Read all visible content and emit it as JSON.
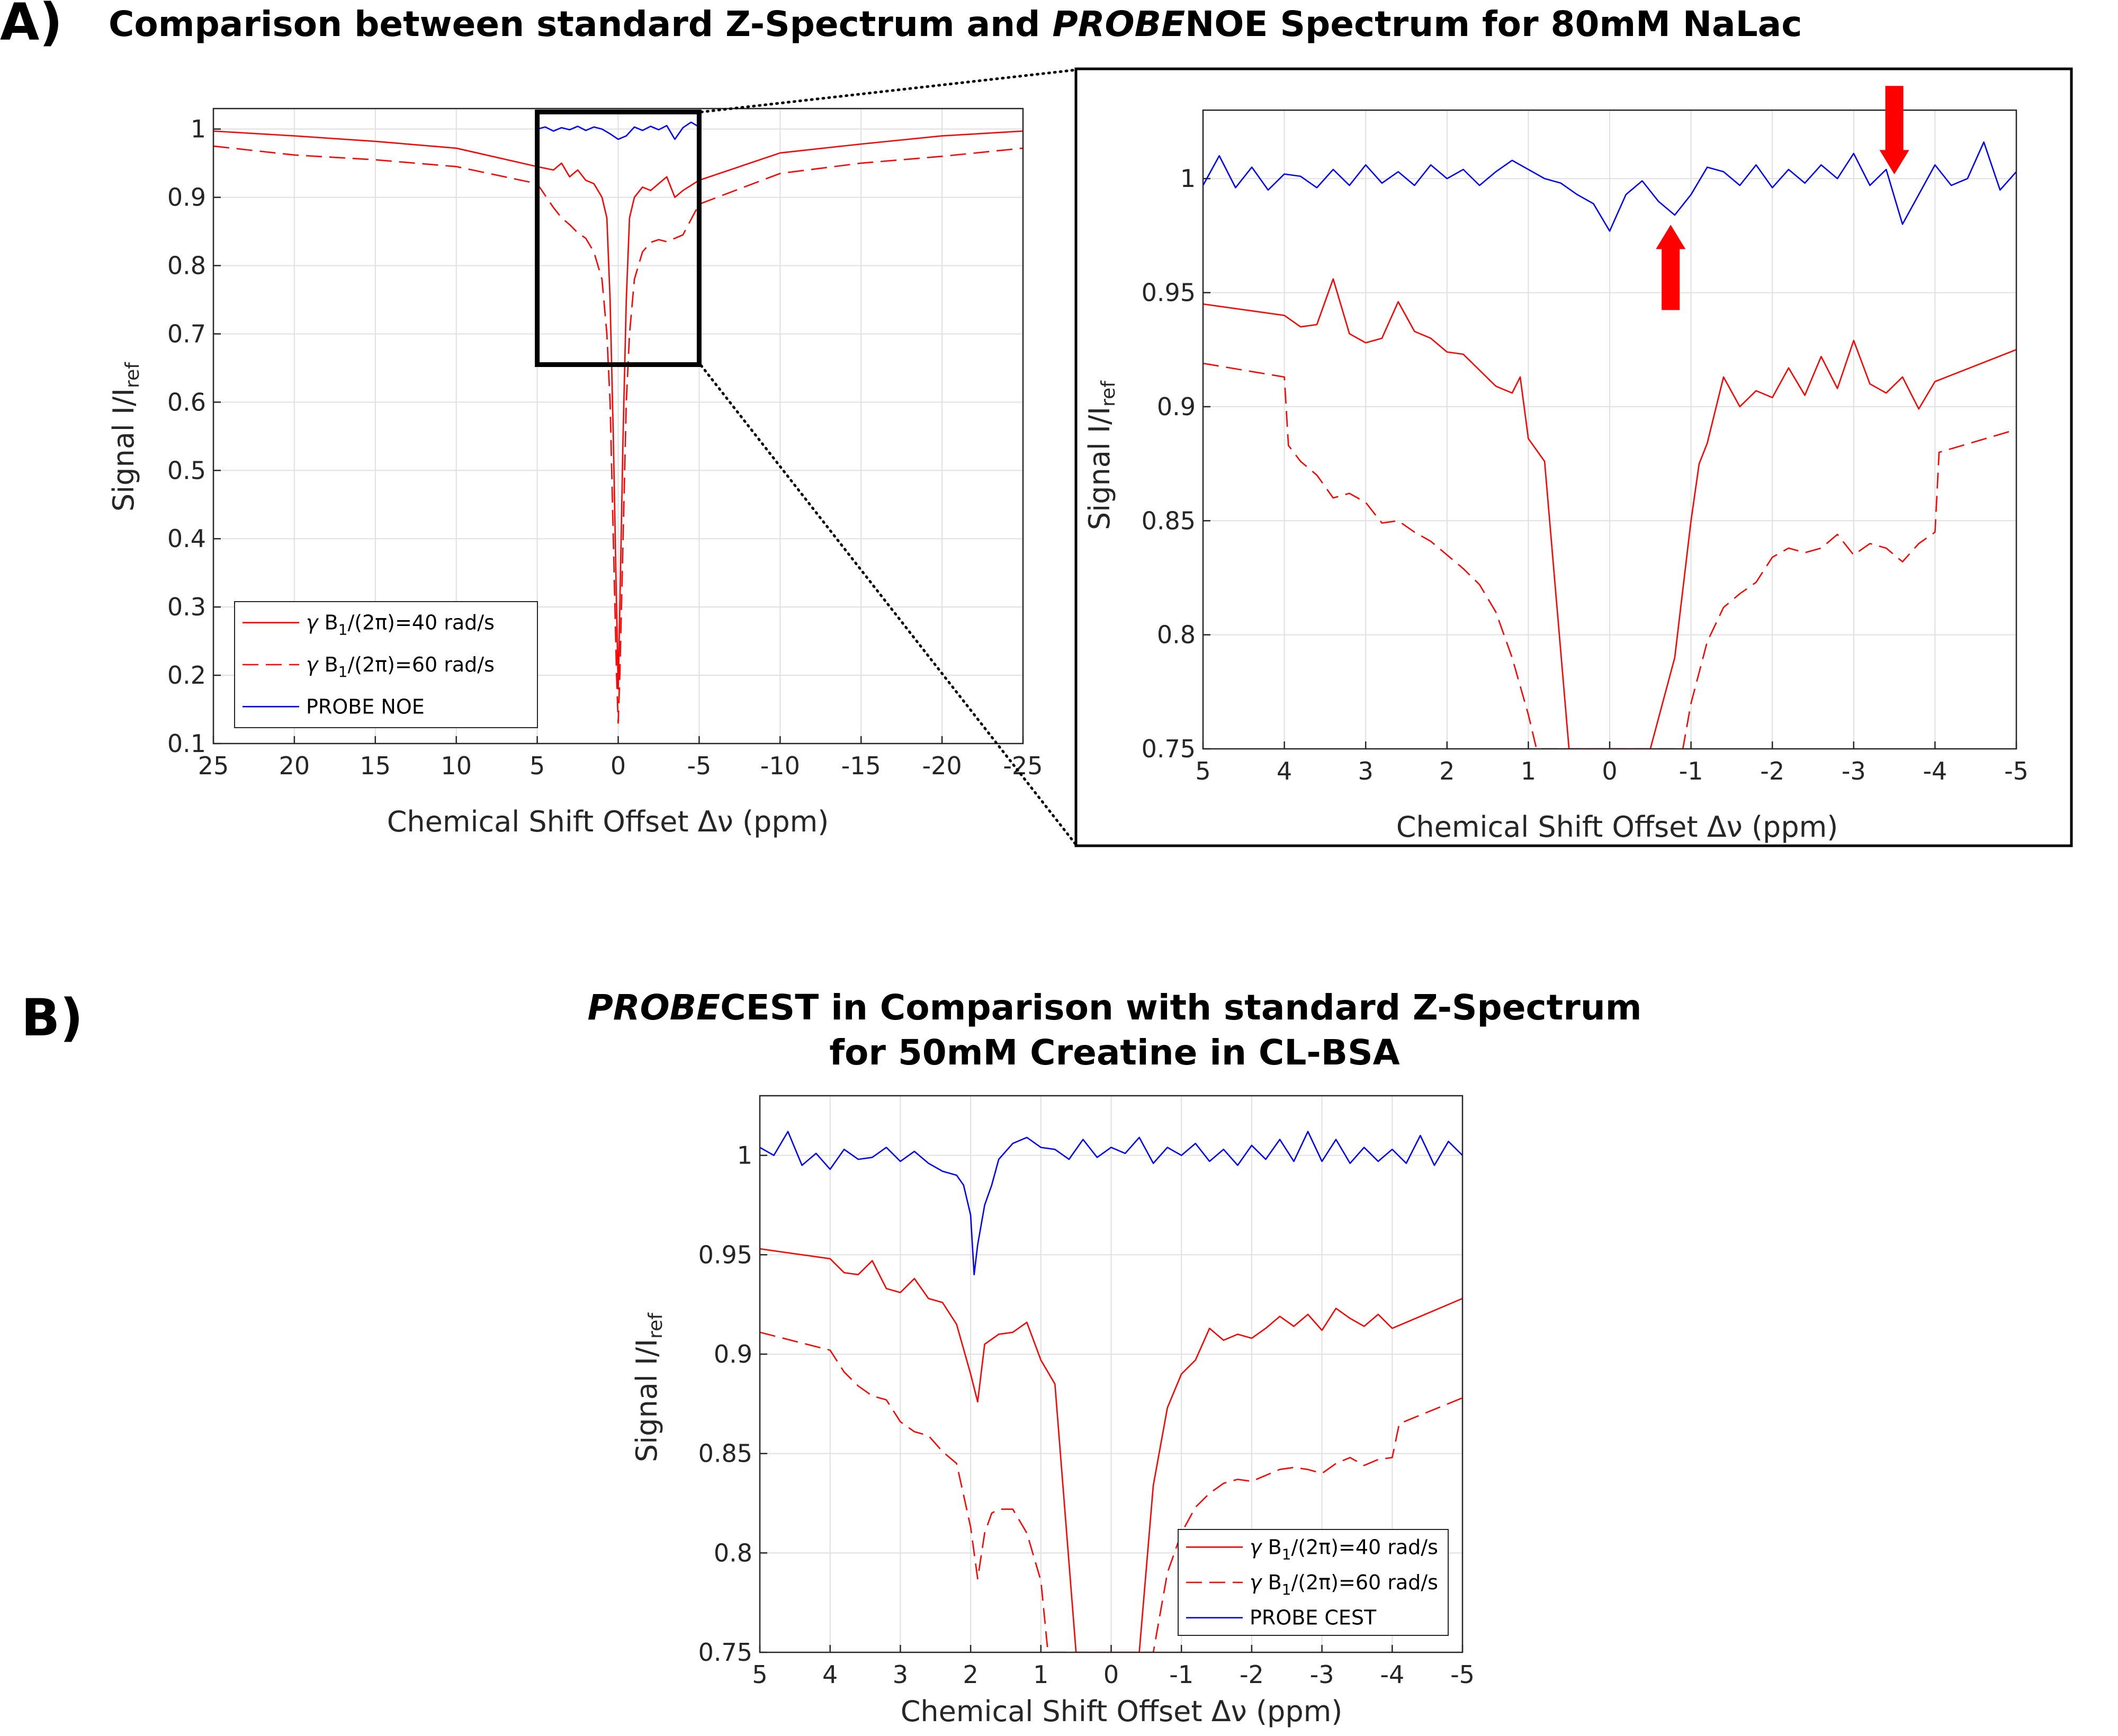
{
  "panel_a": {
    "label": "A)",
    "title_italic": "PROBE",
    "title_pre": "Comparison between standard Z-Spectrum and ",
    "title_post": "NOE Spectrum for 80mM NaLac",
    "ylabel_main": "Signal I/I",
    "ylabel_sub": "ref",
    "xlabel": "Chemical Shift Offset Δν (ppm)"
  },
  "panel_b": {
    "label": "B)",
    "title_line1_italic": "PROBE",
    "title_line1_post": "CEST in Comparison with standard Z-Spectrum",
    "title_line2": "for 50mM Creatine in CL-BSA",
    "ylabel_main": "Signal I/I",
    "ylabel_sub": "ref",
    "xlabel": "Chemical Shift Offset Δν (ppm)"
  },
  "colors": {
    "red": "#ff0000",
    "blue": "#0000ff",
    "arrow": "#ff0000"
  },
  "chart_data": [
    {
      "id": "a_main",
      "type": "line",
      "xlim": [
        25,
        -25
      ],
      "ylim": [
        0.1,
        1.03
      ],
      "xticks": [
        25,
        20,
        15,
        10,
        5,
        0,
        -5,
        -10,
        -15,
        -20,
        -25
      ],
      "yticks": [
        0.1,
        0.2,
        0.3,
        0.4,
        0.5,
        0.6,
        0.7,
        0.8,
        0.9,
        1
      ],
      "grid": true,
      "legend_position": "bottom-left",
      "zoom_box": {
        "x": [
          5,
          -5
        ],
        "y": [
          0.655,
          1.025
        ]
      },
      "series": [
        {
          "name": "γ B1/(2π)=40 rad/s",
          "style": "solid",
          "color": "#ff0000",
          "x": [
            25,
            20,
            15,
            10,
            5,
            4,
            3.5,
            3,
            2.5,
            2,
            1.5,
            1,
            0.7,
            0.5,
            0.3,
            0.1,
            0,
            -0.1,
            -0.3,
            -0.5,
            -0.7,
            -1,
            -1.5,
            -2,
            -2.5,
            -3,
            -3.5,
            -4,
            -5,
            -10,
            -15,
            -20,
            -25
          ],
          "y": [
            0.997,
            0.99,
            0.982,
            0.972,
            0.945,
            0.94,
            0.95,
            0.93,
            0.94,
            0.925,
            0.92,
            0.9,
            0.87,
            0.75,
            0.55,
            0.3,
            0.18,
            0.3,
            0.55,
            0.75,
            0.87,
            0.9,
            0.915,
            0.91,
            0.92,
            0.93,
            0.9,
            0.91,
            0.925,
            0.965,
            0.978,
            0.99,
            0.997
          ]
        },
        {
          "name": "γ B1/(2π)=60 rad/s",
          "style": "dashed",
          "color": "#ff0000",
          "x": [
            25,
            20,
            15,
            10,
            5,
            4,
            3.5,
            3,
            2.5,
            2,
            1.5,
            1,
            0.7,
            0.5,
            0.3,
            0.1,
            0,
            -0.1,
            -0.3,
            -0.5,
            -0.7,
            -1,
            -1.5,
            -2,
            -2.5,
            -3,
            -3.5,
            -4,
            -5,
            -10,
            -15,
            -20,
            -25
          ],
          "y": [
            0.975,
            0.962,
            0.955,
            0.945,
            0.92,
            0.885,
            0.87,
            0.86,
            0.848,
            0.84,
            0.82,
            0.78,
            0.7,
            0.6,
            0.4,
            0.2,
            0.13,
            0.2,
            0.4,
            0.6,
            0.7,
            0.78,
            0.82,
            0.834,
            0.838,
            0.835,
            0.84,
            0.845,
            0.89,
            0.935,
            0.95,
            0.96,
            0.972
          ]
        },
        {
          "name": "PROBE NOE",
          "style": "solid",
          "color": "#0000ff",
          "x": [
            5,
            4.5,
            4,
            3.5,
            3,
            2.5,
            2,
            1.5,
            1,
            0.5,
            0,
            -0.5,
            -1,
            -1.5,
            -2,
            -2.5,
            -3,
            -3.5,
            -4,
            -4.5,
            -5
          ],
          "y": [
            1.0,
            1.003,
            0.997,
            1.002,
            0.999,
            1.004,
            0.998,
            1.003,
            1.0,
            0.993,
            0.985,
            0.99,
            1.003,
            0.998,
            1.004,
            0.999,
            1.005,
            0.985,
            1.002,
            1.01,
            1.003
          ]
        }
      ]
    },
    {
      "id": "a_zoom",
      "type": "line",
      "xlim": [
        5,
        -5
      ],
      "ylim": [
        0.75,
        1.03
      ],
      "xticks": [
        5,
        4,
        3,
        2,
        1,
        0,
        -1,
        -2,
        -3,
        -4,
        -5
      ],
      "yticks": [
        0.75,
        0.8,
        0.85,
        0.9,
        0.95,
        1
      ],
      "grid": true,
      "annotations": [
        {
          "type": "arrow",
          "direction": "up",
          "x": -0.75,
          "y": 0.983
        },
        {
          "type": "arrow",
          "direction": "down",
          "x": -3.5,
          "y": 1.0
        }
      ],
      "series": [
        {
          "name": "γ B1/(2π)=40 rad/s",
          "style": "solid",
          "color": "#ff0000",
          "x": [
            5,
            4,
            3.8,
            3.6,
            3.4,
            3.2,
            3.0,
            2.8,
            2.6,
            2.4,
            2.2,
            2.0,
            1.8,
            1.6,
            1.4,
            1.2,
            1.1,
            1.0,
            0.8,
            0.5,
            -0.5,
            -0.8,
            -1.0,
            -1.1,
            -1.2,
            -1.4,
            -1.6,
            -1.8,
            -2.0,
            -2.2,
            -2.4,
            -2.6,
            -2.8,
            -3.0,
            -3.2,
            -3.4,
            -3.6,
            -3.8,
            -4.0,
            -5.0
          ],
          "y": [
            0.945,
            0.94,
            0.935,
            0.936,
            0.956,
            0.932,
            0.928,
            0.93,
            0.946,
            0.933,
            0.93,
            0.924,
            0.923,
            0.916,
            0.909,
            0.906,
            0.913,
            0.886,
            0.876,
            0.75,
            0.75,
            0.79,
            0.85,
            0.875,
            0.884,
            0.913,
            0.9,
            0.907,
            0.904,
            0.917,
            0.905,
            0.922,
            0.908,
            0.929,
            0.91,
            0.906,
            0.913,
            0.899,
            0.911,
            0.925
          ]
        },
        {
          "name": "γ B1/(2π)=60 rad/s",
          "style": "dashed",
          "color": "#ff0000",
          "x": [
            5,
            4.0,
            3.95,
            3.8,
            3.6,
            3.4,
            3.2,
            3.0,
            2.8,
            2.6,
            2.4,
            2.2,
            2.0,
            1.8,
            1.6,
            1.4,
            1.2,
            1.0,
            0.9,
            -0.9,
            -1.0,
            -1.2,
            -1.4,
            -1.6,
            -1.8,
            -2.0,
            -2.2,
            -2.4,
            -2.6,
            -2.8,
            -3.0,
            -3.2,
            -3.4,
            -3.6,
            -3.8,
            -4.0,
            -4.05,
            -5.0
          ],
          "y": [
            0.919,
            0.913,
            0.883,
            0.876,
            0.87,
            0.86,
            0.862,
            0.858,
            0.849,
            0.85,
            0.845,
            0.841,
            0.835,
            0.829,
            0.822,
            0.81,
            0.79,
            0.765,
            0.75,
            0.75,
            0.77,
            0.797,
            0.812,
            0.818,
            0.823,
            0.834,
            0.838,
            0.836,
            0.838,
            0.844,
            0.835,
            0.84,
            0.838,
            0.832,
            0.84,
            0.845,
            0.88,
            0.89
          ]
        },
        {
          "name": "PROBE NOE",
          "style": "solid",
          "color": "#0000ff",
          "x": [
            5,
            4.8,
            4.6,
            4.4,
            4.2,
            4.0,
            3.8,
            3.6,
            3.4,
            3.2,
            3.0,
            2.8,
            2.6,
            2.4,
            2.2,
            2.0,
            1.8,
            1.6,
            1.4,
            1.2,
            1.0,
            0.8,
            0.6,
            0.4,
            0.2,
            0.0,
            -0.2,
            -0.4,
            -0.6,
            -0.8,
            -1.0,
            -1.2,
            -1.4,
            -1.6,
            -1.8,
            -2.0,
            -2.2,
            -2.4,
            -2.6,
            -2.8,
            -3.0,
            -3.2,
            -3.4,
            -3.6,
            -3.8,
            -4.0,
            -4.2,
            -4.4,
            -4.6,
            -4.8,
            -5.0
          ],
          "y": [
            0.997,
            1.01,
            0.996,
            1.005,
            0.995,
            1.002,
            1.001,
            0.996,
            1.004,
            0.997,
            1.006,
            0.998,
            1.003,
            0.997,
            1.006,
            1.0,
            1.004,
            0.997,
            1.003,
            1.008,
            1.004,
            1.0,
            0.998,
            0.993,
            0.989,
            0.977,
            0.993,
            0.999,
            0.99,
            0.984,
            0.993,
            1.005,
            1.003,
            0.997,
            1.006,
            0.996,
            1.004,
            0.998,
            1.006,
            1.0,
            1.011,
            0.997,
            1.004,
            0.98,
            0.993,
            1.006,
            0.997,
            1.0,
            1.016,
            0.995,
            1.003
          ]
        }
      ]
    },
    {
      "id": "b_main",
      "type": "line",
      "xlim": [
        5,
        -5
      ],
      "ylim": [
        0.75,
        1.03
      ],
      "xticks": [
        5,
        4,
        3,
        2,
        1,
        0,
        -1,
        -2,
        -3,
        -4,
        -5
      ],
      "yticks": [
        0.75,
        0.8,
        0.85,
        0.9,
        0.95,
        1
      ],
      "grid": true,
      "legend_position": "bottom-right",
      "series": [
        {
          "name": "γ B1/(2π)=40 rad/s",
          "style": "solid",
          "color": "#ff0000",
          "x": [
            5,
            4.0,
            3.8,
            3.6,
            3.4,
            3.2,
            3.0,
            2.8,
            2.6,
            2.4,
            2.2,
            2.0,
            1.9,
            1.8,
            1.6,
            1.4,
            1.2,
            1.0,
            0.8,
            0.5,
            -0.4,
            -0.6,
            -0.8,
            -1.0,
            -1.2,
            -1.4,
            -1.6,
            -1.8,
            -2.0,
            -2.2,
            -2.4,
            -2.6,
            -2.8,
            -3.0,
            -3.2,
            -3.4,
            -3.6,
            -3.8,
            -4.0,
            -5.0
          ],
          "y": [
            0.953,
            0.948,
            0.941,
            0.94,
            0.947,
            0.933,
            0.931,
            0.938,
            0.928,
            0.926,
            0.915,
            0.89,
            0.876,
            0.905,
            0.91,
            0.911,
            0.916,
            0.897,
            0.885,
            0.75,
            0.75,
            0.834,
            0.873,
            0.89,
            0.897,
            0.913,
            0.907,
            0.91,
            0.908,
            0.913,
            0.919,
            0.914,
            0.92,
            0.912,
            0.923,
            0.918,
            0.914,
            0.92,
            0.913,
            0.928
          ]
        },
        {
          "name": "γ B1/(2π)=60 rad/s",
          "style": "dashed",
          "color": "#ff0000",
          "x": [
            5,
            4.0,
            3.8,
            3.6,
            3.4,
            3.2,
            3.0,
            2.8,
            2.6,
            2.4,
            2.2,
            2.0,
            1.9,
            1.8,
            1.7,
            1.6,
            1.4,
            1.2,
            1.0,
            0.9,
            -0.6,
            -0.7,
            -0.8,
            -1.0,
            -1.2,
            -1.4,
            -1.6,
            -1.8,
            -2.0,
            -2.2,
            -2.4,
            -2.6,
            -2.8,
            -3.0,
            -3.2,
            -3.4,
            -3.6,
            -3.8,
            -4.0,
            -4.1,
            -5.0
          ],
          "y": [
            0.911,
            0.902,
            0.891,
            0.884,
            0.879,
            0.877,
            0.866,
            0.861,
            0.859,
            0.851,
            0.845,
            0.813,
            0.787,
            0.81,
            0.82,
            0.822,
            0.822,
            0.81,
            0.786,
            0.75,
            0.75,
            0.77,
            0.79,
            0.81,
            0.823,
            0.83,
            0.835,
            0.837,
            0.836,
            0.839,
            0.842,
            0.843,
            0.842,
            0.84,
            0.845,
            0.848,
            0.844,
            0.847,
            0.848,
            0.865,
            0.878
          ]
        },
        {
          "name": "PROBE CEST",
          "style": "solid",
          "color": "#0000ff",
          "x": [
            5,
            4.8,
            4.6,
            4.4,
            4.2,
            4.0,
            3.8,
            3.6,
            3.4,
            3.2,
            3.0,
            2.8,
            2.6,
            2.4,
            2.2,
            2.1,
            2.0,
            1.95,
            1.9,
            1.85,
            1.8,
            1.7,
            1.6,
            1.4,
            1.2,
            1.0,
            0.8,
            0.6,
            0.4,
            0.2,
            0.0,
            -0.2,
            -0.4,
            -0.6,
            -0.8,
            -1.0,
            -1.2,
            -1.4,
            -1.6,
            -1.8,
            -2.0,
            -2.2,
            -2.4,
            -2.6,
            -2.8,
            -3.0,
            -3.2,
            -3.4,
            -3.6,
            -3.8,
            -4.0,
            -4.2,
            -4.4,
            -4.6,
            -4.8,
            -5.0
          ],
          "y": [
            1.004,
            1.0,
            1.012,
            0.995,
            1.001,
            0.993,
            1.003,
            0.998,
            0.999,
            1.004,
            0.997,
            1.002,
            0.996,
            0.992,
            0.99,
            0.985,
            0.97,
            0.94,
            0.955,
            0.965,
            0.975,
            0.985,
            0.998,
            1.006,
            1.009,
            1.004,
            1.003,
            0.998,
            1.008,
            0.999,
            1.004,
            1.001,
            1.009,
            0.996,
            1.004,
            1.0,
            1.006,
            0.997,
            1.003,
            0.995,
            1.005,
            0.998,
            1.008,
            0.997,
            1.012,
            0.997,
            1.008,
            0.996,
            1.004,
            0.997,
            1.003,
            0.996,
            1.01,
            0.995,
            1.007,
            1.0
          ]
        }
      ]
    }
  ]
}
